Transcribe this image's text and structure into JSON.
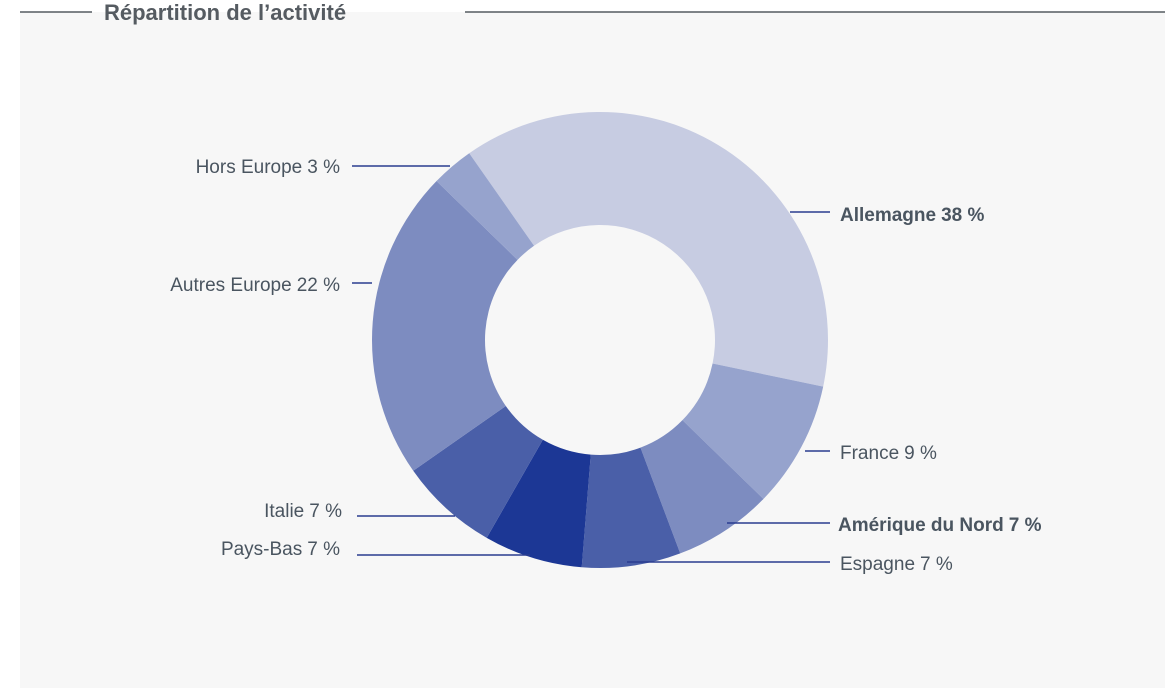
{
  "chart_data": {
    "type": "donut",
    "title": "Répartition de l’activité",
    "categories": [
      "Allemagne",
      "France",
      "Amérique du Nord",
      "Espagne",
      "Pays-Bas",
      "Italie",
      "Autres Europe",
      "Hors Europe"
    ],
    "values": [
      38,
      9,
      7,
      7,
      7,
      7,
      22,
      3
    ],
    "value_labels": [
      "38 %",
      "9 %",
      "7 %",
      "7 %",
      "7 %",
      "7 %",
      "22 %",
      "3 %"
    ],
    "colors": [
      "#c7cce2",
      "#96a3cd",
      "#7d8cc0",
      "#4a5fa8",
      "#1c3795",
      "#4a5fa8",
      "#7d8cc0",
      "#96a3cd"
    ],
    "bold": [
      true,
      false,
      true,
      false,
      false,
      false,
      false,
      false
    ]
  }
}
